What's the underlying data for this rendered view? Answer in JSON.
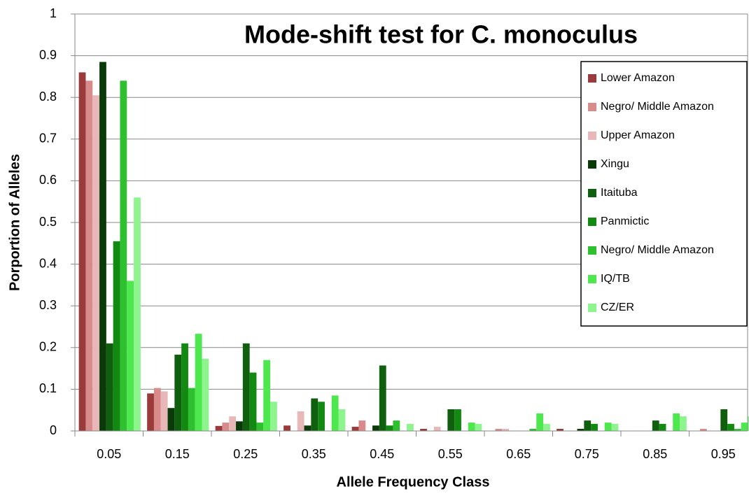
{
  "chart_data": {
    "type": "bar",
    "title": "Mode-shift  test for C. monoculus",
    "x_label": "Allele Frequency Class",
    "y_label": "Porportion of Alleles",
    "categories": [
      "0.05",
      "0.15",
      "0.25",
      "0.35",
      "0.45",
      "0.55",
      "0.65",
      "0.75",
      "0.85",
      "0.95"
    ],
    "series": [
      {
        "name": "Lower Amazon",
        "color": "#9b3a3a",
        "values": [
          0.86,
          0.09,
          0.012,
          0.013,
          0.01,
          0.005,
          0,
          0.005,
          0,
          0
        ]
      },
      {
        "name": "Negro/ Middle Amazon",
        "color": "#d98b8b",
        "values": [
          0.84,
          0.103,
          0.02,
          0,
          0.025,
          0,
          0.005,
          0,
          0,
          0.005
        ]
      },
      {
        "name": "Upper Amazon",
        "color": "#e8b8b8",
        "values": [
          0.805,
          0.095,
          0.035,
          0.047,
          0,
          0.01,
          0.005,
          0,
          0,
          0
        ]
      },
      {
        "name": "Xingu",
        "color": "#0a3a0a",
        "values": [
          0.885,
          0.055,
          0.023,
          0.013,
          0.013,
          0,
          0,
          0.005,
          0,
          0
        ]
      },
      {
        "name": "Itaituba",
        "color": "#0f5f0f",
        "values": [
          0.21,
          0.183,
          0.21,
          0.078,
          0.157,
          0.052,
          0,
          0.025,
          0.025,
          0.052
        ]
      },
      {
        "name": "Panmictic",
        "color": "#128a12",
        "values": [
          0.455,
          0.21,
          0.14,
          0.07,
          0.013,
          0.052,
          0,
          0.017,
          0.017,
          0.017
        ]
      },
      {
        "name": "Negro/ Middle Amazon",
        "color": "#2fc02f",
        "values": [
          0.84,
          0.103,
          0.02,
          0,
          0.025,
          0,
          0.005,
          0,
          0,
          0.005
        ]
      },
      {
        "name": "IQ/TB",
        "color": "#4de84d",
        "values": [
          0.36,
          0.233,
          0.17,
          0.085,
          0,
          0.02,
          0.042,
          0.02,
          0.042,
          0.02
        ]
      },
      {
        "name": "CZ/ER",
        "color": "#8ef58e",
        "values": [
          0.56,
          0.173,
          0.07,
          0.052,
          0.017,
          0.017,
          0.017,
          0.017,
          0.035,
          0.035
        ]
      }
    ],
    "ylim": [
      0,
      1
    ],
    "yticks": [
      0,
      0.1,
      0.2,
      0.3,
      0.4,
      0.5,
      0.6,
      0.7,
      0.8,
      0.9,
      1
    ],
    "grid": true,
    "legend": "upper right"
  }
}
